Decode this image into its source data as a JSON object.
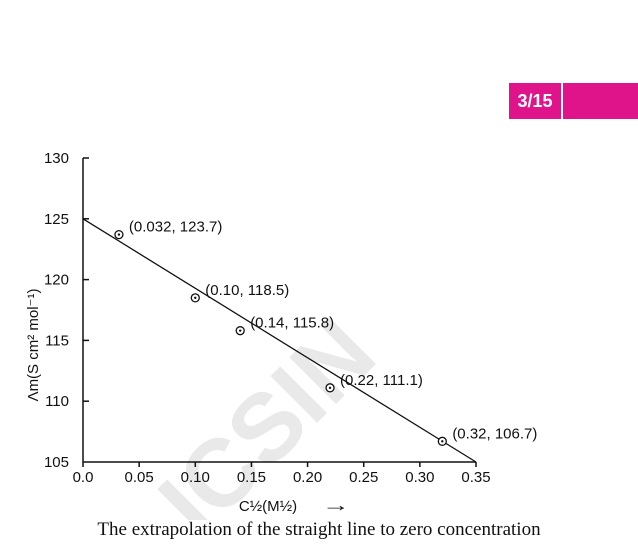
{
  "page_badge": {
    "number": "3/15",
    "color": "#e0148a"
  },
  "caption": "The extrapolation of the straight line to zero concentration",
  "watermark": {
    "text": "ICSIN",
    "color": "#cfcfcf"
  },
  "chart_data": {
    "type": "line",
    "x_label": "C½(M½)",
    "y_label": "Λm(S cm² mol⁻¹)",
    "xlim": [
      0.0,
      0.35
    ],
    "ylim": [
      105,
      130
    ],
    "x_ticks": [
      "0.0",
      "0.05",
      "0.10",
      "0.15",
      "0.20",
      "0.25",
      "0.30",
      "0.35"
    ],
    "x_tick_values": [
      0.0,
      0.05,
      0.1,
      0.15,
      0.2,
      0.25,
      0.3,
      0.35
    ],
    "y_ticks": [
      "105",
      "110",
      "115",
      "120",
      "125",
      "130"
    ],
    "y_tick_values": [
      105,
      110,
      115,
      120,
      125,
      130
    ],
    "line": {
      "x": [
        0.0,
        0.35
      ],
      "y": [
        125.0,
        105.0
      ]
    },
    "points": [
      {
        "x": 0.032,
        "y": 123.7,
        "label": "(0.032, 123.7)"
      },
      {
        "x": 0.1,
        "y": 118.5,
        "label": "(0.10, 118.5)"
      },
      {
        "x": 0.14,
        "y": 115.8,
        "label": "(0.14, 115.8)"
      },
      {
        "x": 0.22,
        "y": 111.1,
        "label": "(0.22, 111.1)"
      },
      {
        "x": 0.32,
        "y": 106.7,
        "label": "(0.32, 106.7)"
      }
    ],
    "arrow": "→",
    "grid": false
  }
}
